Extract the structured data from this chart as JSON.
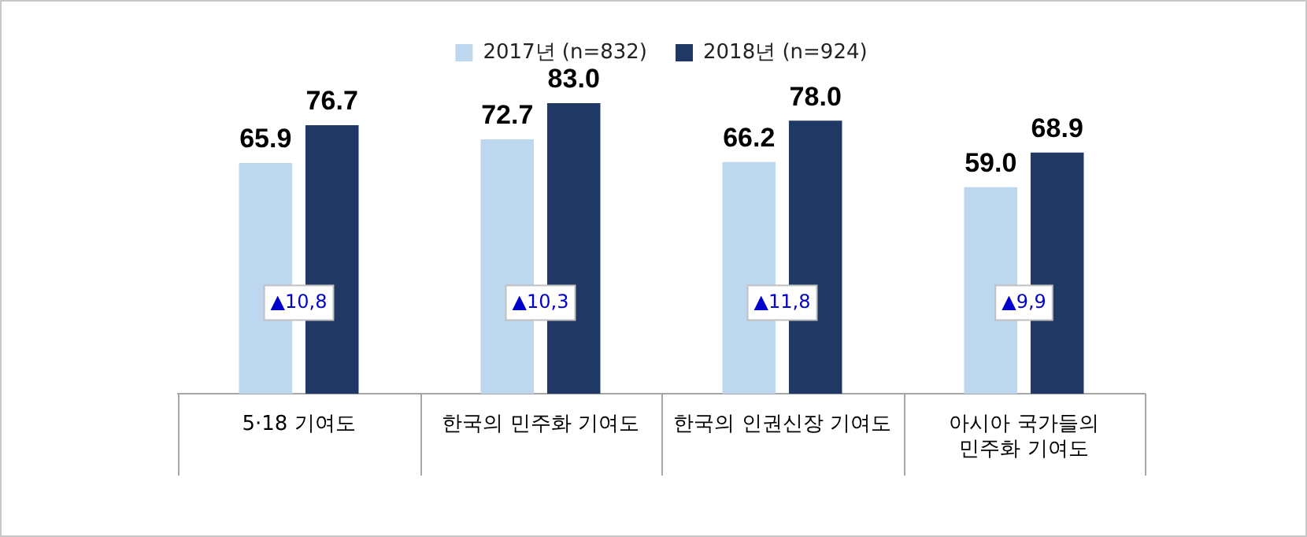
{
  "chart_data": {
    "type": "bar",
    "categories": [
      "5·18 기여도",
      "한국의 민주화 기여도",
      "한국의 인권신장 기여도",
      "아시아 국가들의\n민주화 기여도"
    ],
    "series": [
      {
        "name": "2017년 (n=832)",
        "color": "#bdd7ee",
        "values": [
          65.9,
          72.7,
          66.2,
          59.0
        ],
        "value_labels": [
          "65.9",
          "72.7",
          "66.2",
          "59.0"
        ]
      },
      {
        "name": "2018년 (n=924)",
        "color": "#1f3864",
        "values": [
          76.7,
          83.0,
          78.0,
          68.9
        ],
        "value_labels": [
          "76.7",
          "83.0",
          "78.0",
          "68.9"
        ]
      }
    ],
    "annotations": [
      {
        "text": "▲10,8",
        "x": "5·18 기여도",
        "y": 26
      },
      {
        "text": "▲10,3",
        "x": "한국의 민주화 기여도",
        "y": 26
      },
      {
        "text": "▲11,8",
        "x": "한국의 인권신장 기여도",
        "y": 26
      },
      {
        "text": "▲9,9",
        "x": "아시아 국가들의\n민주화 기여도",
        "y": 26
      }
    ],
    "legend": "top",
    "grid": false,
    "tick_labels": "x"
  }
}
